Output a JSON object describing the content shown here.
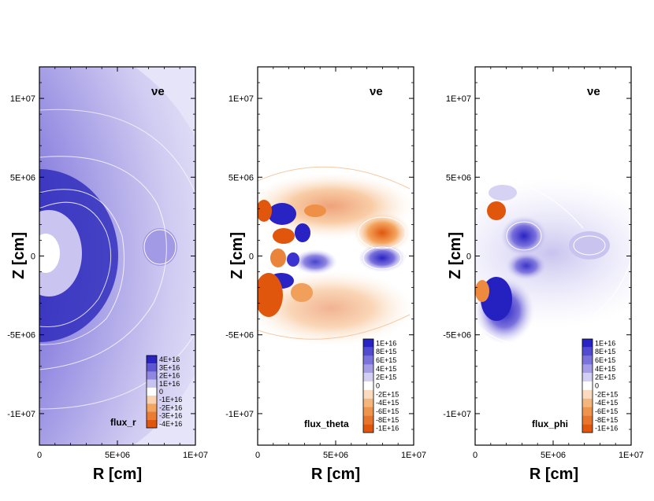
{
  "chart_data": [
    {
      "type": "heatmap",
      "panel": "flux_r",
      "species_label": "νe",
      "xlabel": "R [cm]",
      "ylabel": "Z [cm]",
      "xlim": [
        0,
        10000000
      ],
      "ylim": [
        -12000000,
        12000000
      ],
      "x_ticks": [
        0,
        5000000,
        10000000
      ],
      "x_tick_labels": [
        "0",
        "5E+06",
        "1E+07"
      ],
      "y_ticks": [
        10000000,
        5000000,
        0,
        -5000000,
        -10000000
      ],
      "y_tick_labels": [
        "1E+07",
        "5E+06",
        "0",
        "-5E+06",
        "-1E+07"
      ],
      "colorbar_levels": [
        40000000000000000,
        30000000000000000,
        20000000000000000,
        10000000000000000,
        0,
        -10000000000000000,
        -20000000000000000,
        -30000000000000000,
        -40000000000000000
      ],
      "colorbar_labels": [
        "4E+16",
        "3E+16",
        "2E+16",
        "1E+16",
        "0",
        "-1E+16",
        "-2E+16",
        "-3E+16",
        "-4E+16"
      ]
    },
    {
      "type": "heatmap",
      "panel": "flux_theta",
      "species_label": "νe",
      "xlabel": "R [cm]",
      "ylabel": "Z [cm]",
      "xlim": [
        0,
        10000000
      ],
      "ylim": [
        -12000000,
        12000000
      ],
      "x_ticks": [
        0,
        5000000,
        10000000
      ],
      "x_tick_labels": [
        "0",
        "5E+06",
        "1E+07"
      ],
      "y_ticks": [
        10000000,
        5000000,
        0,
        -5000000,
        -10000000
      ],
      "y_tick_labels": [
        "1E+07",
        "5E+06",
        "0",
        "-5E+06",
        "-1E+07"
      ],
      "colorbar_levels": [
        10000000000000000,
        8000000000000000,
        6000000000000000,
        4000000000000000,
        2000000000000000,
        0,
        -2000000000000000,
        -4000000000000000,
        -6000000000000000,
        -8000000000000000,
        -10000000000000000
      ],
      "colorbar_labels": [
        "1E+16",
        "8E+15",
        "6E+15",
        "4E+15",
        "2E+15",
        "0",
        "-2E+15",
        "-4E+15",
        "-6E+15",
        "-8E+15",
        "-1E+16"
      ]
    },
    {
      "type": "heatmap",
      "panel": "flux_phi",
      "species_label": "νe",
      "xlabel": "R [cm]",
      "ylabel": "Z [cm]",
      "xlim": [
        0,
        10000000
      ],
      "ylim": [
        -12000000,
        12000000
      ],
      "x_ticks": [
        0,
        5000000,
        10000000
      ],
      "x_tick_labels": [
        "0",
        "5E+06",
        "1E+07"
      ],
      "y_ticks": [
        10000000,
        5000000,
        0,
        -5000000,
        -10000000
      ],
      "y_tick_labels": [
        "1E+07",
        "5E+06",
        "0",
        "-5E+06",
        "-1E+07"
      ],
      "colorbar_levels": [
        10000000000000000,
        8000000000000000,
        6000000000000000,
        4000000000000000,
        2000000000000000,
        0,
        -2000000000000000,
        -4000000000000000,
        -6000000000000000,
        -8000000000000000,
        -10000000000000000
      ],
      "colorbar_labels": [
        "1E+16",
        "8E+15",
        "6E+15",
        "4E+15",
        "2E+15",
        "0",
        "-2E+15",
        "-4E+15",
        "-6E+15",
        "-8E+15",
        "-1E+16"
      ]
    }
  ],
  "colors": {
    "positive_max": "#2a23c4",
    "positive_mid": "#8f86e0",
    "positive_low": "#d4d0f3",
    "neutral": "#ffffff",
    "negative_low": "#fbd9b8",
    "negative_mid": "#f3a45e",
    "negative_max": "#e0560d",
    "contour": "#ffffff",
    "axis": "#000000"
  }
}
